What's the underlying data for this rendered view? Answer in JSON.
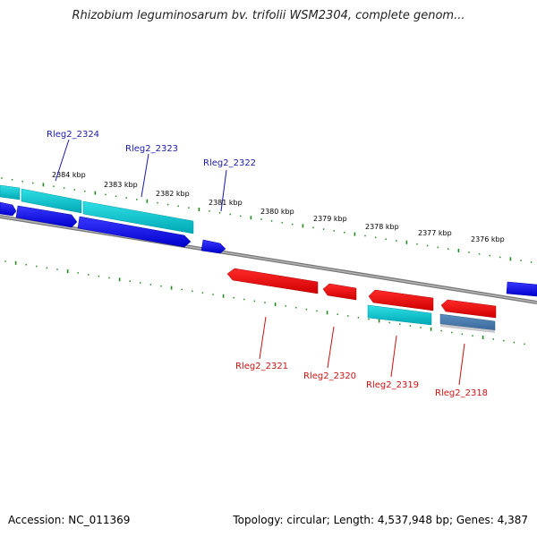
{
  "title": "Rhizobium leguminosarum bv. trifolii WSM2304, complete genom...",
  "footer": {
    "accession": "Accession: NC_011369",
    "summary": "Topology: circular; Length: 4,537,948 bp; Genes: 4,387"
  },
  "colors": {
    "forward_cds": "#0000ee",
    "reverse_cds": "#ee0000",
    "rna": "#00c0c8",
    "misc": "#4a7fb0",
    "backbone": "#808080",
    "ticks": "#228b22",
    "label_forward": "#1a1aaa",
    "label_reverse": "#cc1111"
  },
  "scale": {
    "unit": "kbp",
    "labels": [
      "2384 kbp",
      "2383 kbp",
      "2382 kbp",
      "2381 kbp",
      "2380 kbp",
      "2379 kbp",
      "2378 kbp",
      "2377 kbp",
      "2376 kbp"
    ]
  },
  "genes": {
    "forward": [
      "Rleg2_2324",
      "Rleg2_2323",
      "Rleg2_2322"
    ],
    "reverse": [
      "Rleg2_2321",
      "Rleg2_2320",
      "Rleg2_2319",
      "Rleg2_2318"
    ]
  }
}
